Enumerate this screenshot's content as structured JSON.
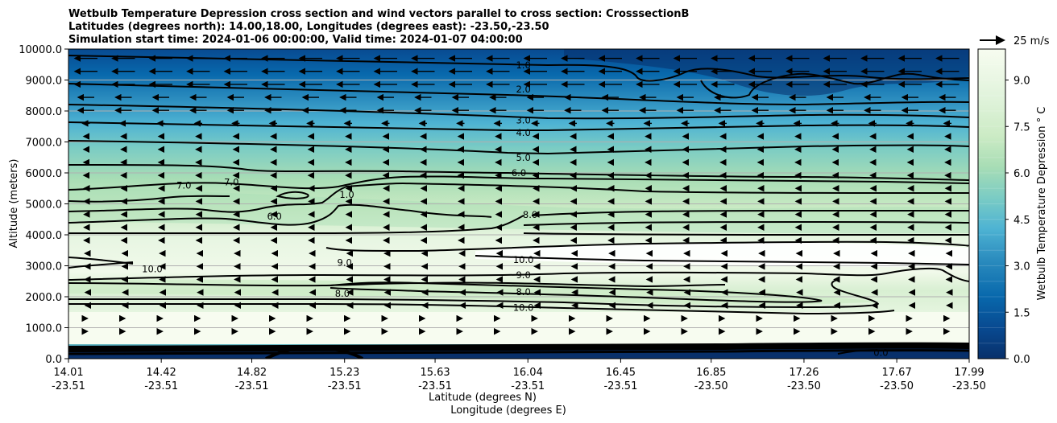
{
  "chart_data": {
    "type": "contour",
    "title_lines": [
      "Wetbulb Temperature Depression cross section and wind vectors parallel to cross section: CrosssectionB",
      "Latitudes (degrees north): 14.00,18.00, Longitudes (degrees east): -23.50,-23.50",
      "Simulation start time: 2024-01-06 00:00:00, Valid time: 2024-01-07 04:00:00"
    ],
    "xlabel_lat": "Latitude (degrees N)",
    "xlabel_lon": "Longitude (degrees E)",
    "ylabel": "Altitude (meters)",
    "x_ticks": [
      {
        "lat": "14.01",
        "lon": "-23.51"
      },
      {
        "lat": "14.42",
        "lon": "-23.51"
      },
      {
        "lat": "14.82",
        "lon": "-23.51"
      },
      {
        "lat": "15.23",
        "lon": "-23.51"
      },
      {
        "lat": "15.63",
        "lon": "-23.51"
      },
      {
        "lat": "16.04",
        "lon": "-23.51"
      },
      {
        "lat": "16.45",
        "lon": "-23.51"
      },
      {
        "lat": "16.85",
        "lon": "-23.50"
      },
      {
        "lat": "17.26",
        "lon": "-23.50"
      },
      {
        "lat": "17.67",
        "lon": "-23.50"
      },
      {
        "lat": "17.99",
        "lon": "-23.50"
      }
    ],
    "x_tick_values": [
      14.01,
      14.42,
      14.82,
      15.23,
      15.63,
      16.04,
      16.45,
      16.85,
      17.26,
      17.67,
      17.99
    ],
    "xlim": [
      14.01,
      17.99
    ],
    "y_ticks": [
      "0.0",
      "1000.0",
      "2000.0",
      "3000.0",
      "4000.0",
      "5000.0",
      "6000.0",
      "7000.0",
      "8000.0",
      "9000.0",
      "10000.0"
    ],
    "y_tick_values": [
      0,
      1000,
      2000,
      3000,
      4000,
      5000,
      6000,
      7000,
      8000,
      9000,
      10000
    ],
    "ylim": [
      0,
      10000
    ],
    "grid": "horizontal",
    "colorbar": {
      "label": "Wetbulb Temperature Depression ° C",
      "ticks": [
        "0.0",
        "1.5",
        "3.0",
        "4.5",
        "6.0",
        "7.5",
        "9.0"
      ],
      "tick_values": [
        0,
        1.5,
        3,
        4.5,
        6,
        7.5,
        9
      ],
      "range": [
        0,
        10
      ],
      "colormap": "GnBu_r",
      "colors": [
        "#08306b",
        "#084a91",
        "#0868ac",
        "#2b8cbe",
        "#4eb3d3",
        "#7bccc4",
        "#a8ddb5",
        "#ccebc5",
        "#e0f3db",
        "#f7fcf0"
      ]
    },
    "quiver_key": {
      "label": "25 m/s",
      "speed": 25
    },
    "contour_lines": [
      {
        "level": "1.0",
        "label_x": 16.02,
        "label_alt": 9480
      },
      {
        "level": "2.0",
        "label_x": 16.02,
        "label_alt": 8700
      },
      {
        "level": "3.0",
        "label_x": 16.02,
        "label_alt": 7700
      },
      {
        "level": "4.0",
        "label_x": 16.02,
        "label_alt": 7300
      },
      {
        "level": "5.0",
        "label_x": 16.02,
        "label_alt": 6500
      },
      {
        "level": "6.0",
        "label_x": 16.0,
        "label_alt": 6000
      },
      {
        "level": "8.0",
        "label_x": 16.05,
        "label_alt": 4650
      },
      {
        "level": "10.0",
        "label_x": 16.02,
        "label_alt": 3200
      },
      {
        "level": "9.0",
        "label_x": 16.02,
        "label_alt": 2700
      },
      {
        "level": "8.0",
        "label_x": 16.02,
        "label_alt": 2150
      },
      {
        "level": "10.0",
        "label_x": 16.02,
        "label_alt": 1650
      },
      {
        "level": "7.0",
        "label_x": 14.52,
        "label_alt": 5600
      },
      {
        "level": "7.0",
        "label_x": 14.73,
        "label_alt": 5700
      },
      {
        "level": "6.0",
        "label_x": 14.92,
        "label_alt": 4600
      },
      {
        "level": "1.0",
        "label_x": 15.24,
        "label_alt": 5300
      },
      {
        "level": "10.0",
        "label_x": 14.38,
        "label_alt": 2900
      },
      {
        "level": "9.0",
        "label_x": 15.23,
        "label_alt": 3100
      },
      {
        "level": "8.0",
        "label_x": 15.22,
        "label_alt": 2100
      },
      {
        "level": "0.0",
        "label_x": 17.6,
        "label_alt": 200
      }
    ]
  }
}
